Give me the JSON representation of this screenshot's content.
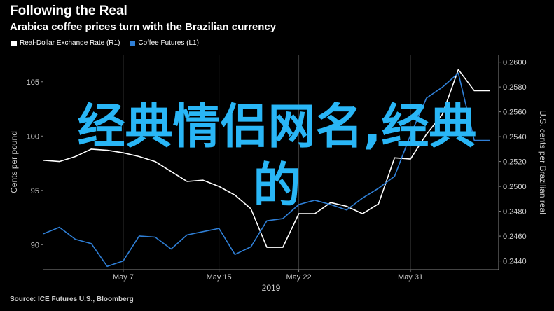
{
  "title": "Following the Real",
  "subtitle": "Arabica coffee prices turn with the Brazilian currency",
  "source": "Source: ICE Futures U.S., Bloomberg",
  "legend": [
    {
      "label": "Real-Dollar Exchange Rate (R1)",
      "color": "#ffffff"
    },
    {
      "label": "Coffee Futures (L1)",
      "color": "#2f7fd6"
    }
  ],
  "overlay_text": {
    "line1": "经典情侣网名,经典",
    "line2": "的"
  },
  "chart_data": {
    "type": "line",
    "xlabel": "2019",
    "x_ticks": [
      "May 7",
      "May 15",
      "May 22",
      "May 31"
    ],
    "x_tick_index": [
      5,
      11,
      16,
      23
    ],
    "left_axis": {
      "label": "Cents per pound",
      "ticks": [
        "90",
        "95",
        "100",
        "105"
      ],
      "ylim": [
        87.7,
        107.5
      ]
    },
    "right_axis": {
      "label": "U.S. cents per Brazilian real",
      "ticks": [
        "0.2440",
        "0.2460",
        "0.2480",
        "0.2500",
        "0.2520",
        "0.2540",
        "0.2560",
        "0.2580",
        "0.2600"
      ],
      "ylim": [
        0.2433,
        0.2606
      ]
    },
    "series": [
      {
        "name": "Real-Dollar Exchange Rate (R1)",
        "axis": "right",
        "color": "#ffffff",
        "values": [
          0.2521,
          0.252,
          0.2524,
          0.253,
          0.2529,
          0.2527,
          0.2524,
          0.252,
          0.2512,
          0.2504,
          0.2505,
          0.25,
          0.2493,
          0.2482,
          0.2451,
          0.2451,
          0.2478,
          0.2478,
          0.2487,
          0.2484,
          0.2478,
          0.2486,
          0.2523,
          0.2522,
          0.2542,
          0.2558,
          0.2594,
          0.2577,
          0.2577
        ]
      },
      {
        "name": "Coffee Futures (L1)",
        "axis": "left",
        "color": "#2f7fd6",
        "values": [
          91.0,
          91.6,
          90.5,
          90.1,
          88.0,
          88.5,
          90.8,
          90.7,
          89.6,
          90.9,
          91.2,
          91.5,
          89.1,
          89.8,
          92.2,
          92.4,
          93.7,
          94.1,
          93.7,
          93.2,
          94.3,
          95.2,
          96.3,
          100.1,
          103.5,
          104.5,
          105.8,
          99.6,
          99.6
        ]
      }
    ]
  }
}
